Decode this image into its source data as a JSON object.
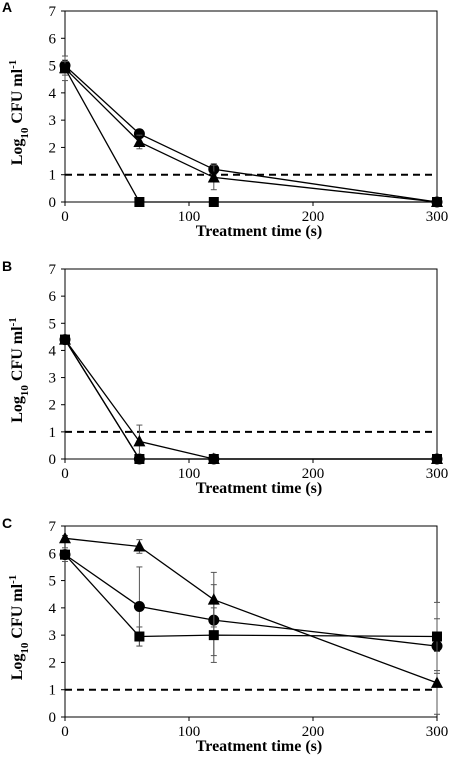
{
  "chart_data": [
    {
      "panel": "A",
      "type": "line",
      "xlabel": "Treatment time (s)",
      "ylabel_main": "Log",
      "ylabel_sub": "10",
      "ylabel_rest": " CFU ml",
      "ylabel_sup": "-1",
      "xlim": [
        0,
        300
      ],
      "ylim": [
        0,
        7
      ],
      "xticks": [
        0,
        100,
        200,
        300
      ],
      "yticks": [
        0,
        1,
        2,
        3,
        4,
        5,
        6,
        7
      ],
      "detection_limit": 1,
      "series": [
        {
          "marker": "circle",
          "x": [
            0,
            60,
            120,
            300
          ],
          "y": [
            5.0,
            2.5,
            1.2,
            0
          ],
          "err": [
            0.2,
            0.15,
            0.2,
            0
          ]
        },
        {
          "marker": "triangle",
          "x": [
            0,
            60,
            120,
            300
          ],
          "y": [
            4.9,
            2.2,
            0.9,
            0
          ],
          "err": [
            0.45,
            0.25,
            0.45,
            0
          ]
        },
        {
          "marker": "square",
          "x": [
            0,
            60,
            120,
            300
          ],
          "y": [
            4.9,
            0,
            0,
            0
          ],
          "err": [
            0.25,
            0,
            0,
            0
          ]
        }
      ]
    },
    {
      "panel": "B",
      "type": "line",
      "xlabel": "Treatment time (s)",
      "ylabel_main": "Log",
      "ylabel_sub": "10",
      "ylabel_rest": " CFU ml",
      "ylabel_sup": "-1",
      "xlim": [
        0,
        300
      ],
      "ylim": [
        0,
        7
      ],
      "xticks": [
        0,
        100,
        200,
        300
      ],
      "yticks": [
        0,
        1,
        2,
        3,
        4,
        5,
        6,
        7
      ],
      "detection_limit": 1,
      "series": [
        {
          "marker": "circle",
          "x": [
            0,
            60,
            120,
            300
          ],
          "y": [
            4.4,
            0,
            0,
            0
          ],
          "err": [
            0.1,
            0,
            0,
            0
          ]
        },
        {
          "marker": "triangle",
          "x": [
            0,
            60,
            120,
            300
          ],
          "y": [
            4.4,
            0.65,
            0,
            0
          ],
          "err": [
            0.1,
            0.6,
            0,
            0
          ]
        },
        {
          "marker": "square",
          "x": [
            0,
            60,
            120,
            300
          ],
          "y": [
            4.4,
            0,
            0,
            0
          ],
          "err": [
            0.1,
            0,
            0,
            0
          ]
        }
      ]
    },
    {
      "panel": "C",
      "type": "line",
      "xlabel": "Treatment time (s)",
      "ylabel_main": "Log",
      "ylabel_sub": "10",
      "ylabel_rest": " CFU ml",
      "ylabel_sup": "-1",
      "xlim": [
        0,
        300
      ],
      "ylim": [
        0,
        7
      ],
      "xticks": [
        0,
        100,
        200,
        300
      ],
      "yticks": [
        0,
        1,
        2,
        3,
        4,
        5,
        6,
        7
      ],
      "detection_limit": 1,
      "series": [
        {
          "marker": "circle",
          "x": [
            0,
            60,
            120,
            300
          ],
          "y": [
            5.95,
            4.05,
            3.55,
            2.6
          ],
          "err": [
            0.25,
            1.45,
            1.3,
            1.0
          ]
        },
        {
          "marker": "triangle",
          "x": [
            0,
            60,
            120,
            300
          ],
          "y": [
            6.55,
            6.25,
            4.3,
            1.25
          ],
          "err": [
            0.1,
            0.25,
            1.0,
            1.15
          ]
        },
        {
          "marker": "square",
          "x": [
            0,
            60,
            120,
            300
          ],
          "y": [
            5.95,
            2.95,
            3.0,
            2.95
          ],
          "err": [
            0.1,
            0.35,
            1.0,
            1.25
          ]
        }
      ]
    }
  ]
}
